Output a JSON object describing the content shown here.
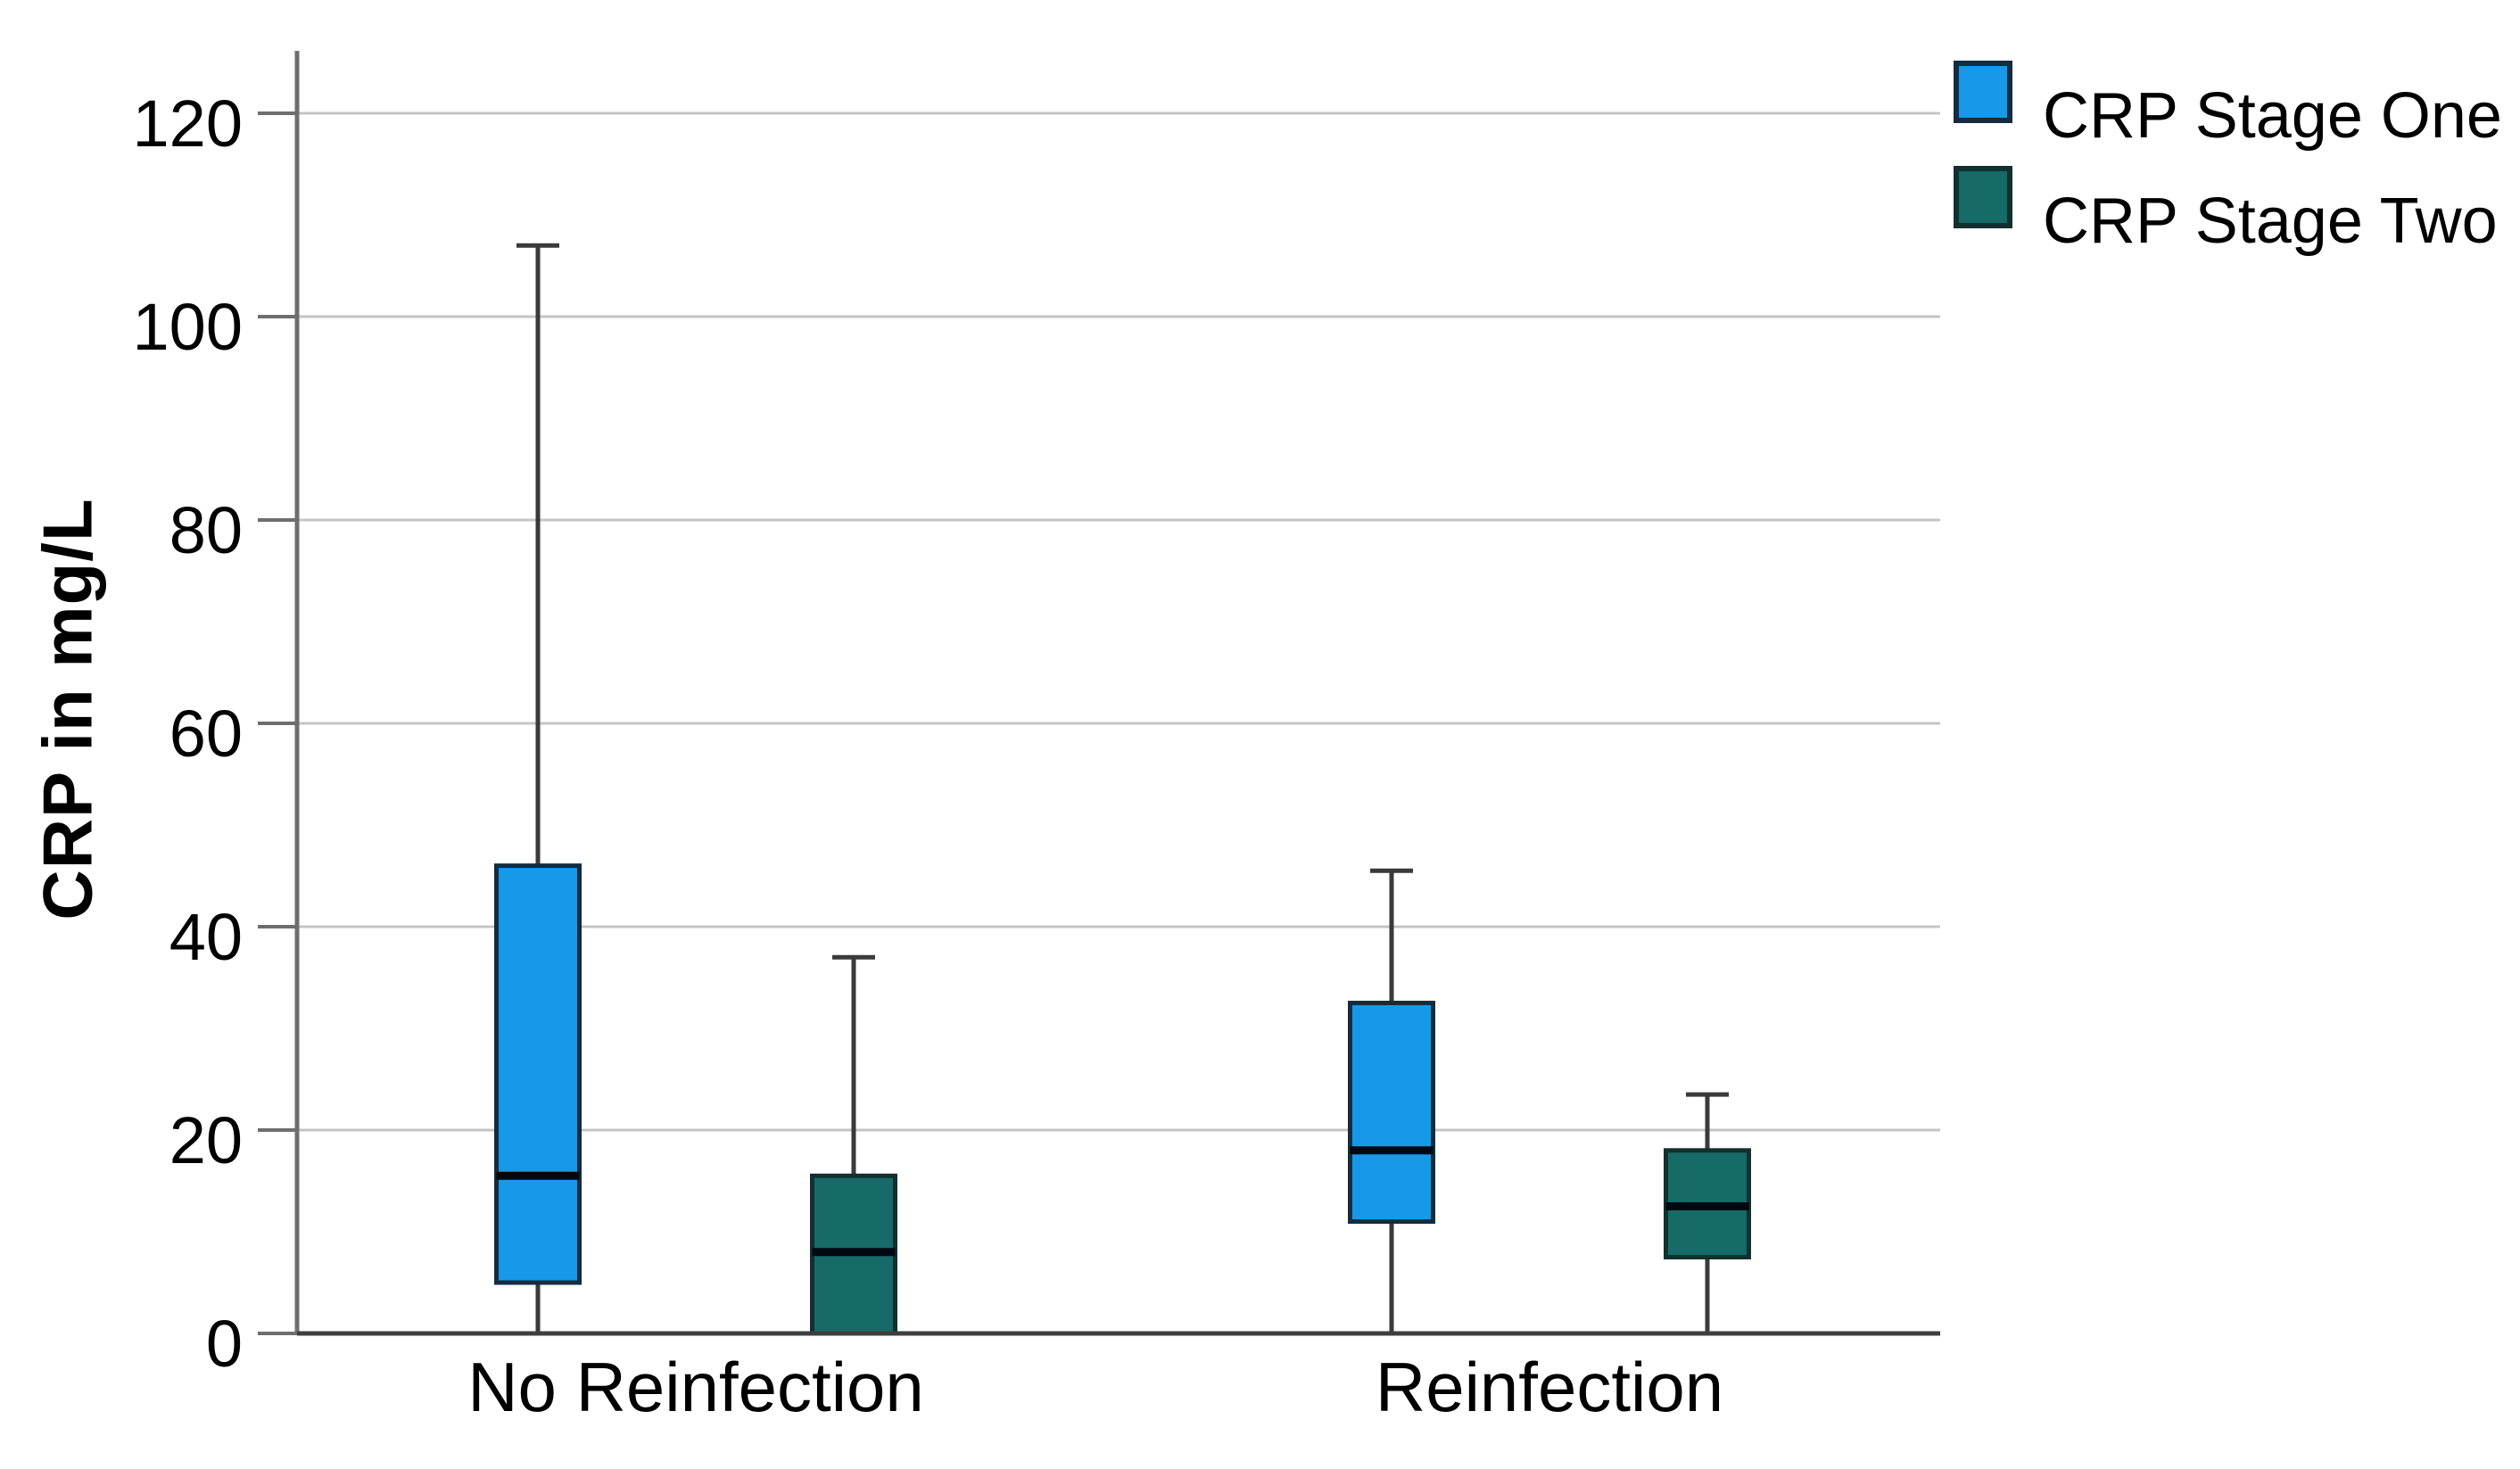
{
  "page": {
    "background_color": "#ffffff"
  },
  "chart_data": {
    "type": "boxplot",
    "title": "",
    "xlabel": "",
    "ylabel": "CRP in mg/L",
    "ylim": [
      0,
      126
    ],
    "yticks": [
      0,
      20,
      40,
      60,
      80,
      100,
      120
    ],
    "grid": true,
    "legend_position": "top-right",
    "categories": [
      "No Reinfection",
      "Reinfection"
    ],
    "series": [
      {
        "name": "CRP Stage One",
        "fill_color": "#1699E8",
        "edge_color": "#132C3F",
        "boxes": [
          {
            "category": "No Reinfection",
            "whisker_low": 0,
            "q1": 5,
            "median": 15.5,
            "q3": 46,
            "whisker_high": 107
          },
          {
            "category": "Reinfection",
            "whisker_low": 0,
            "q1": 11,
            "median": 18,
            "q3": 32.5,
            "whisker_high": 45.5
          }
        ]
      },
      {
        "name": "CRP Stage Two",
        "fill_color": "#166A68",
        "edge_color": "#11302E",
        "boxes": [
          {
            "category": "No Reinfection",
            "whisker_low": null,
            "q1": 0,
            "median": 8,
            "q3": 15.5,
            "whisker_high": 37
          },
          {
            "category": "Reinfection",
            "whisker_low": 0,
            "q1": 7.5,
            "median": 12.5,
            "q3": 18,
            "whisker_high": 23.5
          }
        ]
      }
    ],
    "style": {
      "gridline_color": "#c4c4c4",
      "axis_color": "#6e6e6e",
      "baseline_color": "#3e3e3e",
      "whisker_color": "#3a3a3a",
      "median_color": "#000810",
      "text_color": "#000000"
    }
  }
}
